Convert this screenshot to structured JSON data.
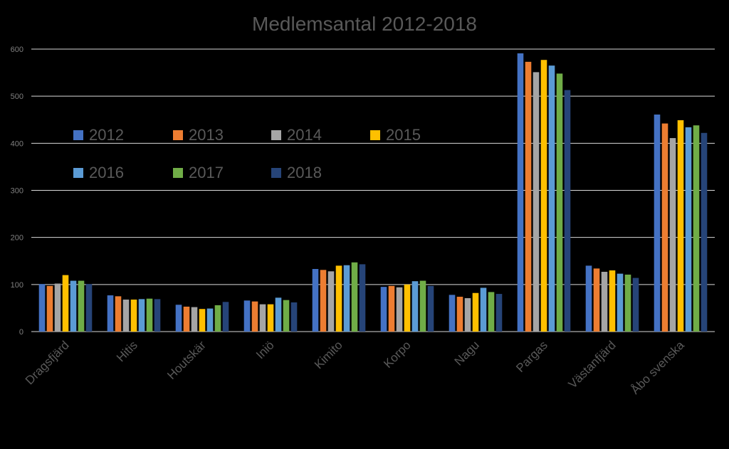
{
  "chart_data": {
    "type": "bar",
    "title": "Medlemsantal 2012-2018",
    "xlabel": "",
    "ylabel": "",
    "ylim": [
      0,
      600
    ],
    "yticks": [
      0,
      100,
      200,
      300,
      400,
      500,
      600
    ],
    "grid": true,
    "legend_position": "upper-left inside plot",
    "categories": [
      "Dragsfjärd",
      "Hitis",
      "Houtskär",
      "Iniö",
      "Kimito",
      "Korpo",
      "Nagu",
      "Pargas",
      "Västanfjärd",
      "Åbo svenska"
    ],
    "series": [
      {
        "name": "2012",
        "color": "#4472C4",
        "values": [
          101,
          77,
          57,
          66,
          133,
          95,
          78,
          591,
          140,
          461
        ]
      },
      {
        "name": "2013",
        "color": "#ED7D31",
        "values": [
          97,
          75,
          53,
          64,
          131,
          97,
          74,
          573,
          134,
          442
        ]
      },
      {
        "name": "2014",
        "color": "#A5A5A5",
        "values": [
          102,
          68,
          52,
          58,
          128,
          94,
          71,
          551,
          127,
          411
        ]
      },
      {
        "name": "2015",
        "color": "#FFC000",
        "values": [
          120,
          68,
          48,
          58,
          140,
          100,
          82,
          577,
          130,
          449
        ]
      },
      {
        "name": "2016",
        "color": "#5B9BD5",
        "values": [
          108,
          69,
          49,
          72,
          141,
          107,
          93,
          565,
          123,
          434
        ]
      },
      {
        "name": "2017",
        "color": "#70AD47",
        "values": [
          108,
          70,
          56,
          67,
          147,
          108,
          84,
          548,
          121,
          438
        ]
      },
      {
        "name": "2018",
        "color": "#264478",
        "values": [
          101,
          69,
          63,
          62,
          143,
          97,
          80,
          513,
          114,
          422
        ]
      }
    ]
  }
}
